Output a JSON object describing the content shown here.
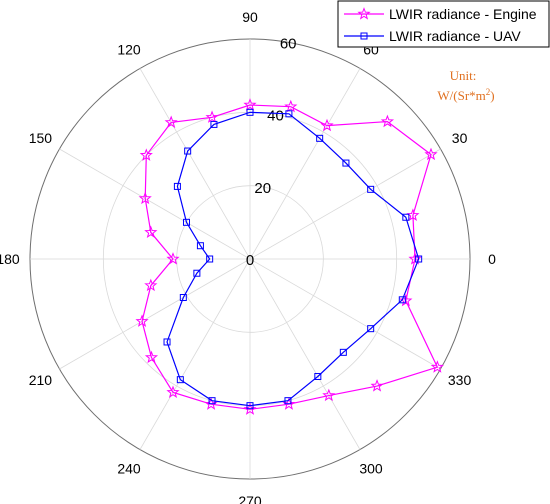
{
  "chart_data": {
    "type": "polar-line",
    "title": "",
    "angle_ticks": [
      0,
      30,
      60,
      90,
      120,
      150,
      180,
      210,
      240,
      270,
      300,
      330
    ],
    "radial_ticks": [
      0,
      20,
      40,
      60
    ],
    "rlim": [
      0,
      60
    ],
    "angle_units": "degrees",
    "grid": true,
    "legend_position": "top-right",
    "unit_label": {
      "line1": "Unit:",
      "line2_base": "W/(Sr*m",
      "line2_sup": "2",
      "line2_end": ")"
    },
    "series": [
      {
        "name": "LWIR radiance - Engine",
        "color": "#ff00ff",
        "marker": "star",
        "theta": [
          0,
          15,
          30,
          45,
          60,
          75,
          90,
          105,
          120,
          135,
          150,
          165,
          180,
          195,
          210,
          225,
          240,
          255,
          270,
          285,
          300,
          315,
          330,
          345
        ],
        "r": [
          45,
          46,
          57,
          53,
          42,
          43,
          42,
          40,
          43,
          40,
          33,
          28,
          21,
          28,
          34,
          38,
          42,
          41,
          41,
          41,
          43,
          49,
          59,
          44
        ]
      },
      {
        "name": "LWIR radiance - UAV",
        "color": "#0000ff",
        "marker": "square",
        "theta": [
          0,
          15,
          30,
          45,
          60,
          75,
          90,
          105,
          120,
          135,
          150,
          165,
          180,
          195,
          210,
          225,
          240,
          255,
          270,
          285,
          300,
          315,
          330,
          345
        ],
        "r": [
          46,
          44,
          38,
          37,
          38,
          41,
          40,
          38,
          34,
          28,
          20,
          14,
          11,
          15,
          21,
          32,
          38,
          40,
          40,
          40,
          37,
          36,
          38,
          43
        ]
      }
    ]
  }
}
